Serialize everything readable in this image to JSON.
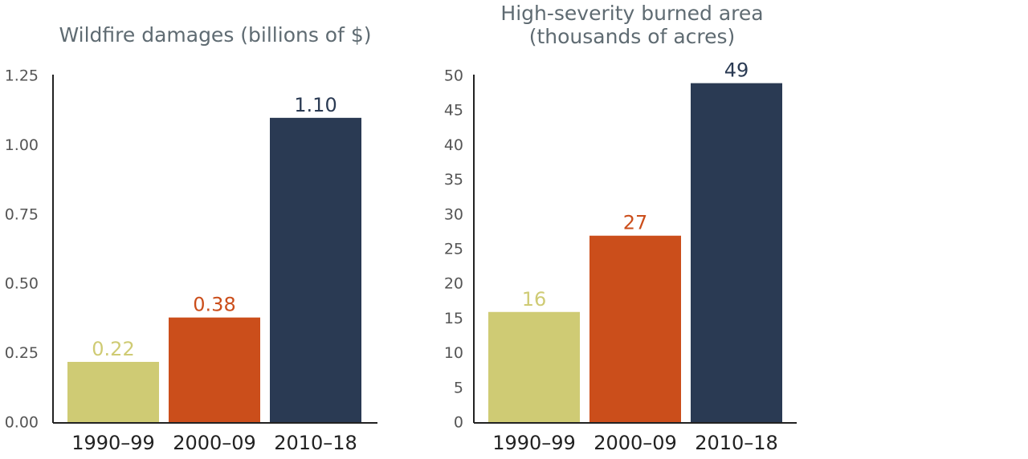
{
  "chart_data": [
    {
      "type": "bar",
      "title": [
        "Wildfire damages (billions of $)"
      ],
      "categories": [
        "1990–99",
        "2000–09",
        "2010–18"
      ],
      "values": [
        0.22,
        0.38,
        1.1
      ],
      "value_labels": [
        "0.22",
        "0.38",
        "1.10"
      ],
      "colors": [
        "#cfcb74",
        "#cb4e1b",
        "#2a3a53"
      ],
      "ylim": [
        0,
        1.25
      ],
      "yticks": [
        {
          "value": 0,
          "label": "0.00"
        },
        0.25,
        {
          "value": 0.5,
          "label": "0.50"
        },
        0.75,
        {
          "value": 1,
          "label": "1.00"
        },
        1.25
      ]
    },
    {
      "type": "bar",
      "title": [
        "High-severity burned area",
        "(thousands of acres)"
      ],
      "categories": [
        "1990–99",
        "2000–09",
        "2010–18"
      ],
      "values": [
        16,
        27,
        49
      ],
      "colors": [
        "#cfcb74",
        "#cb4e1b",
        "#2a3a53"
      ],
      "ylim": [
        0,
        50
      ],
      "yticks": [
        0,
        5,
        10,
        15,
        20,
        25,
        30,
        35,
        40,
        45,
        50
      ]
    }
  ]
}
